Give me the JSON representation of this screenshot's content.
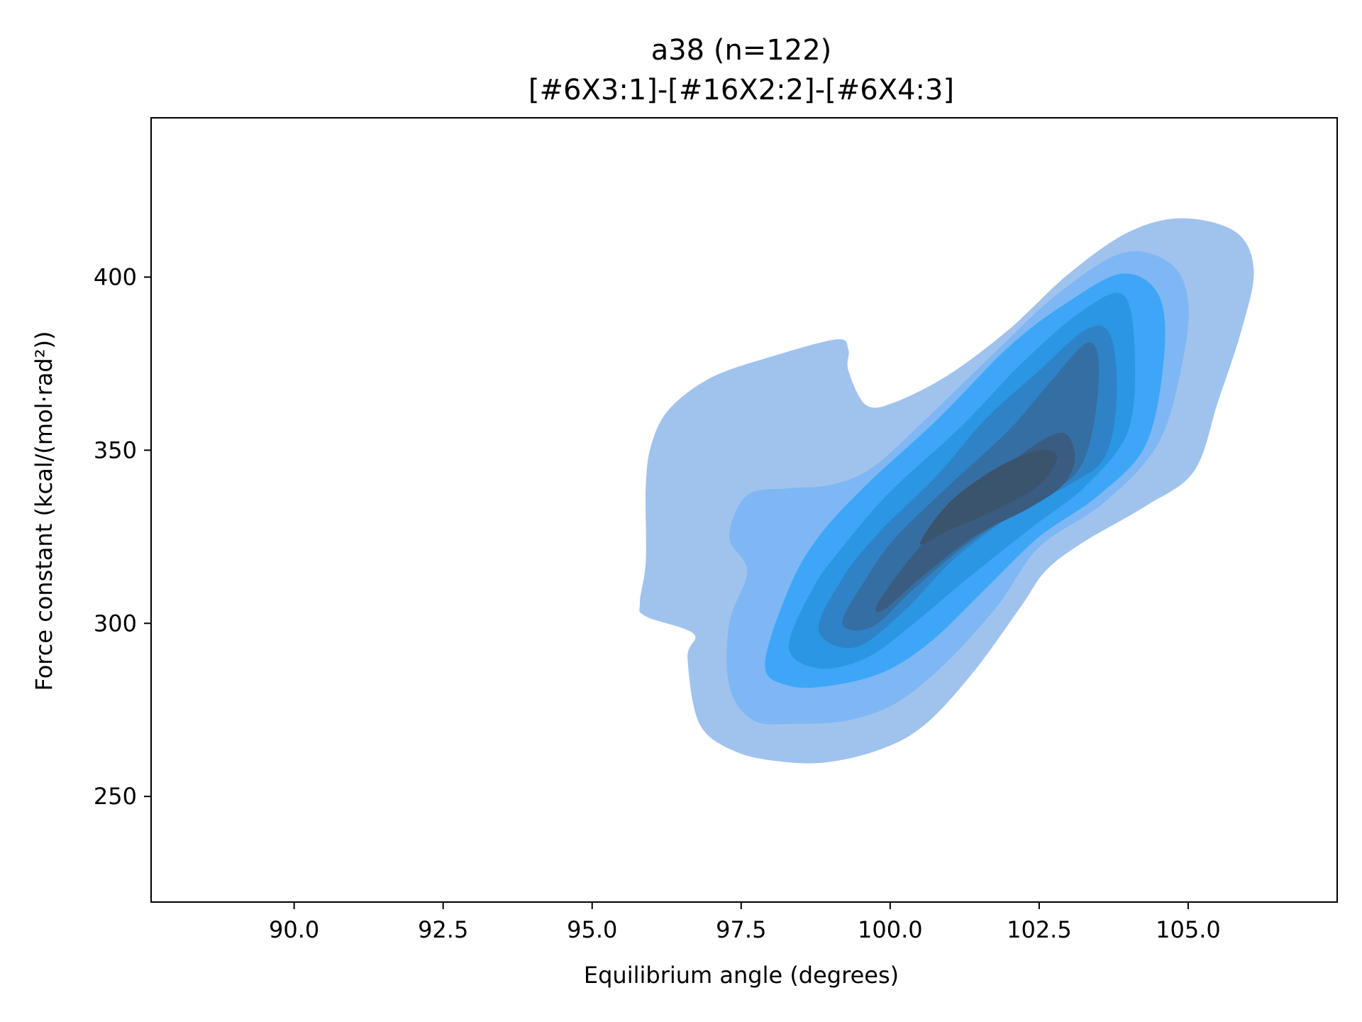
{
  "chart_data": {
    "type": "kde-contour",
    "title": "a38 (n=122)",
    "subtitle": "[#6X3:1]-[#16X2:2]-[#6X4:3]",
    "xlabel": "Equilibrium angle (degrees)",
    "ylabel": "Force constant (kcal/(mol·rad²))",
    "xlim": [
      87.6,
      107.5
    ],
    "ylim": [
      219.5,
      446
    ],
    "xticks": [
      "90.0",
      "92.5",
      "95.0",
      "97.5",
      "100.0",
      "102.5",
      "105.0"
    ],
    "yticks": [
      "250",
      "300",
      "350",
      "400"
    ],
    "xtick_values": [
      90.0,
      92.5,
      95.0,
      97.5,
      100.0,
      102.5,
      105.0
    ],
    "ytick_values": [
      250,
      300,
      350,
      400
    ],
    "grid": false,
    "colors": {
      "level1": "#a0c3ee",
      "level2": "#7eb7f4",
      "level3": "#3ea6f7",
      "level4": "#2b96e3",
      "level5": "#2f82c6",
      "level6": "#356ea2",
      "level7": "#3a5c80",
      "level8": "#3a546e",
      "axis": "#000000"
    },
    "contour_levels": [
      {
        "level": 1,
        "points": [
          [
            95.8,
            306
          ],
          [
            95.9,
            318
          ],
          [
            95.9,
            340
          ],
          [
            96.0,
            352
          ],
          [
            96.3,
            362
          ],
          [
            97.0,
            371
          ],
          [
            98.0,
            377
          ],
          [
            99.1,
            382
          ],
          [
            99.3,
            379
          ],
          [
            99.3,
            373
          ],
          [
            99.6,
            363
          ],
          [
            100.1,
            364
          ],
          [
            101.0,
            372
          ],
          [
            102.0,
            385
          ],
          [
            103.0,
            401
          ],
          [
            104.0,
            413
          ],
          [
            104.9,
            417
          ],
          [
            105.8,
            413
          ],
          [
            106.1,
            402
          ],
          [
            105.9,
            385
          ],
          [
            105.5,
            364
          ],
          [
            105.1,
            344
          ],
          [
            104.3,
            334
          ],
          [
            103.2,
            323
          ],
          [
            102.6,
            315
          ],
          [
            102.2,
            305
          ],
          [
            101.4,
            286
          ],
          [
            100.6,
            271
          ],
          [
            99.9,
            264
          ],
          [
            99.0,
            260
          ],
          [
            98.2,
            260
          ],
          [
            97.4,
            263
          ],
          [
            96.8,
            271
          ],
          [
            96.6,
            290
          ],
          [
            96.7,
            297
          ],
          [
            95.9,
            302
          ],
          [
            95.8,
            306
          ]
        ]
      },
      {
        "level": 2,
        "points": [
          [
            97.3,
            325
          ],
          [
            97.6,
            337
          ],
          [
            98.3,
            339
          ],
          [
            99.0,
            340
          ],
          [
            99.7,
            345
          ],
          [
            100.6,
            359
          ],
          [
            101.8,
            379
          ],
          [
            102.8,
            395
          ],
          [
            103.9,
            407
          ],
          [
            104.7,
            404
          ],
          [
            105.0,
            393
          ],
          [
            104.9,
            375
          ],
          [
            104.5,
            352
          ],
          [
            103.6,
            335
          ],
          [
            102.5,
            322
          ],
          [
            101.8,
            305
          ],
          [
            100.9,
            288
          ],
          [
            100.1,
            277
          ],
          [
            99.3,
            272
          ],
          [
            98.4,
            271
          ],
          [
            97.7,
            272
          ],
          [
            97.3,
            282
          ],
          [
            97.3,
            300
          ],
          [
            97.6,
            315
          ],
          [
            97.3,
            325
          ]
        ]
      },
      {
        "level": 3,
        "points": [
          [
            97.9,
            288
          ],
          [
            98.3,
            310
          ],
          [
            98.8,
            325
          ],
          [
            99.6,
            340
          ],
          [
            100.8,
            359
          ],
          [
            102.0,
            380
          ],
          [
            103.0,
            393
          ],
          [
            103.9,
            401
          ],
          [
            104.5,
            395
          ],
          [
            104.6,
            378
          ],
          [
            104.3,
            352
          ],
          [
            103.5,
            337
          ],
          [
            102.5,
            325
          ],
          [
            101.6,
            310
          ],
          [
            100.7,
            295
          ],
          [
            99.9,
            286
          ],
          [
            99.0,
            282
          ],
          [
            98.3,
            282
          ],
          [
            97.9,
            288
          ]
        ]
      },
      {
        "level": 4,
        "points": [
          [
            98.3,
            293
          ],
          [
            98.7,
            310
          ],
          [
            99.2,
            322
          ],
          [
            100.0,
            338
          ],
          [
            101.2,
            357
          ],
          [
            102.2,
            375
          ],
          [
            103.2,
            390
          ],
          [
            103.9,
            395
          ],
          [
            104.1,
            380
          ],
          [
            104.0,
            356
          ],
          [
            103.3,
            340
          ],
          [
            102.4,
            328
          ],
          [
            101.3,
            313
          ],
          [
            100.4,
            300
          ],
          [
            99.6,
            290
          ],
          [
            98.8,
            287
          ],
          [
            98.3,
            293
          ]
        ]
      },
      {
        "level": 5,
        "points": [
          [
            98.8,
            298
          ],
          [
            99.2,
            313
          ],
          [
            99.8,
            326
          ],
          [
            100.8,
            343
          ],
          [
            101.6,
            359
          ],
          [
            102.5,
            373
          ],
          [
            103.3,
            385
          ],
          [
            103.7,
            383
          ],
          [
            103.8,
            365
          ],
          [
            103.6,
            348
          ],
          [
            103.0,
            340
          ],
          [
            102.2,
            333
          ],
          [
            101.1,
            319
          ],
          [
            100.2,
            303
          ],
          [
            99.4,
            293
          ],
          [
            98.8,
            298
          ]
        ]
      },
      {
        "level": 6,
        "points": [
          [
            99.2,
            300
          ],
          [
            99.6,
            313
          ],
          [
            100.1,
            325
          ],
          [
            101.0,
            340
          ],
          [
            102.0,
            356
          ],
          [
            102.7,
            370
          ],
          [
            103.3,
            381
          ],
          [
            103.5,
            375
          ],
          [
            103.4,
            356
          ],
          [
            103.1,
            343
          ],
          [
            102.3,
            334
          ],
          [
            101.3,
            323
          ],
          [
            100.4,
            310
          ],
          [
            99.7,
            299
          ],
          [
            99.2,
            300
          ]
        ]
      },
      {
        "level": 7,
        "points": [
          [
            99.8,
            306
          ],
          [
            100.5,
            322
          ],
          [
            101.5,
            338
          ],
          [
            102.3,
            350
          ],
          [
            102.9,
            355
          ],
          [
            103.1,
            348
          ],
          [
            102.9,
            340
          ],
          [
            102.3,
            333
          ],
          [
            101.4,
            325
          ],
          [
            100.5,
            313
          ],
          [
            99.9,
            304
          ],
          [
            99.8,
            306
          ]
        ]
      },
      {
        "level": 8,
        "points": [
          [
            100.5,
            323
          ],
          [
            101.0,
            335
          ],
          [
            101.8,
            345
          ],
          [
            102.5,
            350
          ],
          [
            102.8,
            348
          ],
          [
            102.5,
            340
          ],
          [
            101.8,
            333
          ],
          [
            101.0,
            327
          ],
          [
            100.5,
            323
          ]
        ]
      }
    ]
  }
}
